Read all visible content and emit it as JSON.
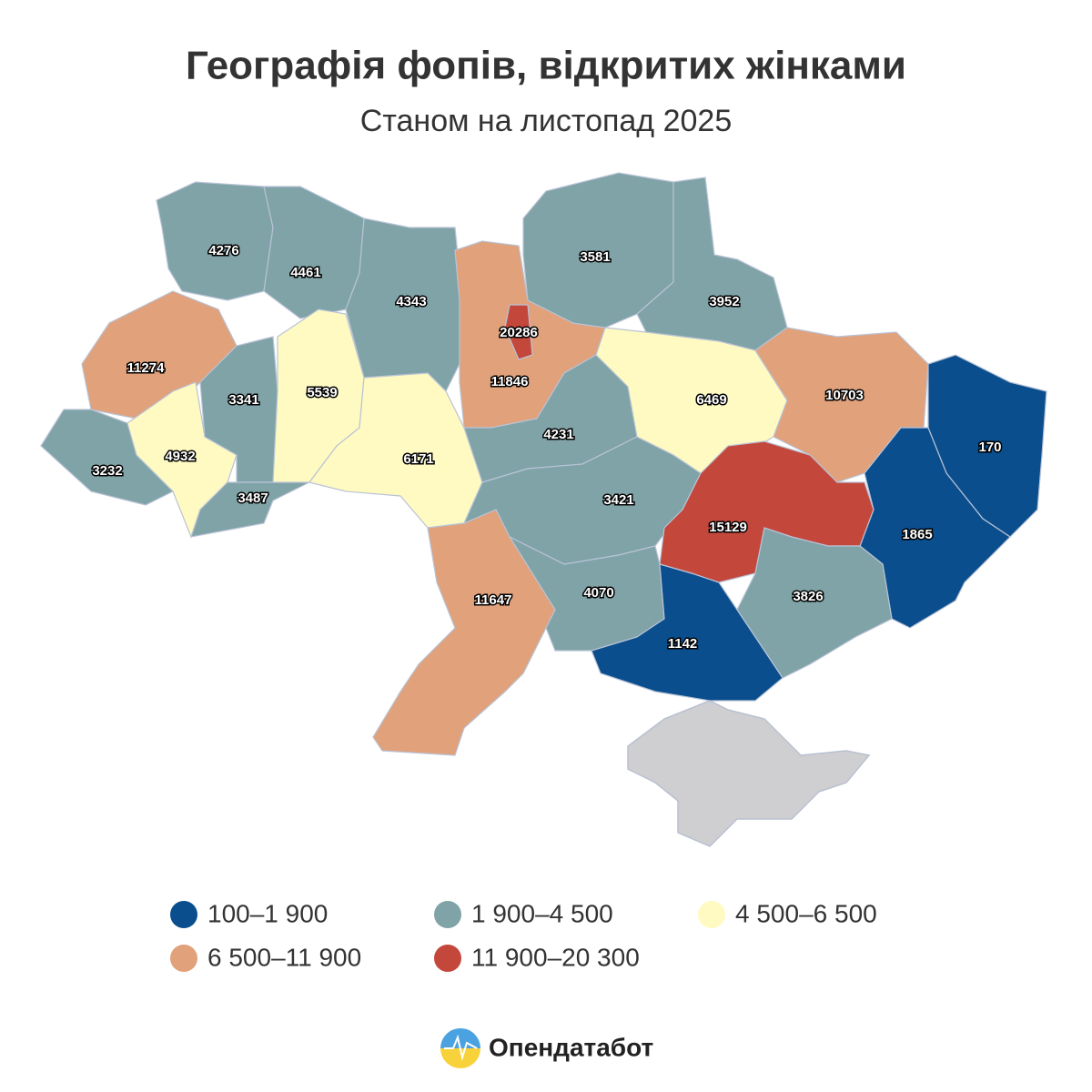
{
  "header": {
    "title": "Географія фопів, відкритих жінками",
    "subtitle": "Станом на листопад 2025"
  },
  "map": {
    "regions": [
      {
        "value": 4276,
        "color": "#7fa3a7"
      },
      {
        "value": 4461,
        "color": "#7fa3a7"
      },
      {
        "value": 4343,
        "color": "#7fa3a7"
      },
      {
        "value": 11846,
        "color": "#e0a17b"
      },
      {
        "value": 20286,
        "color": "#c4473c"
      },
      {
        "value": 3581,
        "color": "#7fa3a7"
      },
      {
        "value": 3952,
        "color": "#7fa3a7"
      },
      {
        "value": 11274,
        "color": "#e0a17b"
      },
      {
        "value": 3232,
        "color": "#7fa3a7"
      },
      {
        "value": 4932,
        "color": "#fffac1"
      },
      {
        "value": 3341,
        "color": "#7fa3a7"
      },
      {
        "value": 3487,
        "color": "#7fa3a7"
      },
      {
        "value": 5539,
        "color": "#fffac1"
      },
      {
        "value": 6171,
        "color": "#fffac1"
      },
      {
        "value": 4231,
        "color": "#7fa3a7"
      },
      {
        "value": 3421,
        "color": "#7fa3a7"
      },
      {
        "value": 6469,
        "color": "#fffac1"
      },
      {
        "value": 10703,
        "color": "#e0a17b"
      },
      {
        "value": 170,
        "color": "#0a4e8e"
      },
      {
        "value": 1865,
        "color": "#0a4e8e"
      },
      {
        "value": 15129,
        "color": "#c4473c"
      },
      {
        "value": 3826,
        "color": "#7fa3a7"
      },
      {
        "value": 4070,
        "color": "#7fa3a7"
      },
      {
        "value": 11647,
        "color": "#e0a17b"
      },
      {
        "value": 1142,
        "color": "#0a4e8e"
      }
    ]
  },
  "legend": [
    {
      "label": "100–1 900",
      "color": "#0a4e8e"
    },
    {
      "label": "1 900–4 500",
      "color": "#7fa3a7"
    },
    {
      "label": "4 500–6 500",
      "color": "#fffac1"
    },
    {
      "label": "6 500–11 900",
      "color": "#e0a17b"
    },
    {
      "label": "11 900–20 300",
      "color": "#c4473c"
    }
  ],
  "footer": {
    "brand": "Опендатабот"
  }
}
